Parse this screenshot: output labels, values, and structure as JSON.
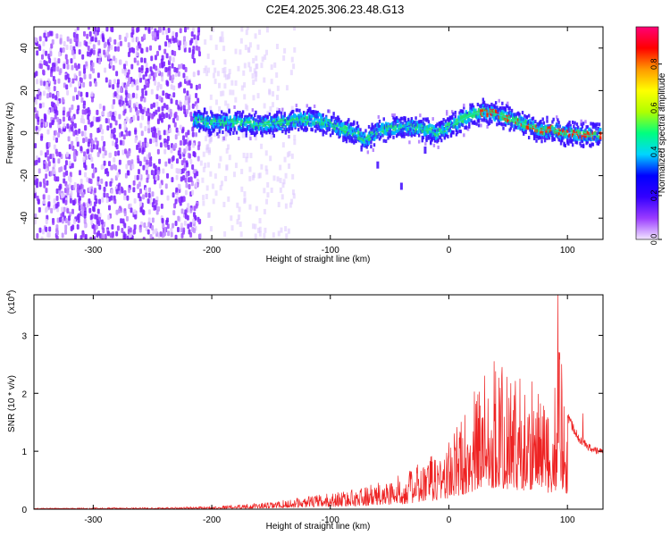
{
  "title": "C2E4.2025.306.23.48.G13",
  "chart_data": [
    {
      "type": "heatmap",
      "name": "spectrogram",
      "xlabel": "Height of straight line (km)",
      "ylabel": "Frequency (Hz)",
      "xlim": [
        -350,
        130
      ],
      "ylim": [
        -50,
        50
      ],
      "xticks": [
        -300,
        -200,
        -100,
        0,
        100
      ],
      "xtick_labels": [
        "-300",
        "-200",
        "-100",
        "0",
        "100"
      ],
      "yticks": [
        -40,
        -20,
        0,
        20,
        40
      ],
      "ytick_labels": [
        "-40",
        "-20",
        "0",
        "20",
        "40"
      ],
      "colorbar": {
        "label": "Normalized spectral amplitude",
        "range": [
          0,
          0.97
        ],
        "ticks": [
          0,
          0.2,
          0.4,
          0.6,
          0.8
        ],
        "tick_labels": [
          "0.0",
          "0.2",
          "0.4",
          "0.6",
          "0.8"
        ],
        "colors": [
          "#f2e6ff",
          "#9a3bff",
          "#3300ff",
          "#0000ff",
          "#00d5ff",
          "#00ff7f",
          "#b0ff00",
          "#ffff00",
          "#ff9900",
          "#ff0000",
          "#ff0077"
        ]
      },
      "trace": {
        "x": [
          -215,
          -200,
          -180,
          -160,
          -140,
          -125,
          -110,
          -95,
          -80,
          -70,
          -60,
          -50,
          -40,
          -20,
          -10,
          0,
          10,
          20,
          30,
          40,
          50,
          60,
          70,
          80,
          88,
          95,
          105,
          115,
          125
        ],
        "y": [
          6,
          5,
          5,
          4,
          5,
          6,
          6,
          3,
          0,
          -3,
          1,
          2,
          3,
          2,
          0,
          3,
          6,
          9,
          10,
          9,
          7,
          5,
          3,
          1,
          2,
          0,
          0,
          -1,
          -1
        ]
      }
    },
    {
      "type": "line",
      "name": "snr",
      "xlabel": "Height of straight line (km)",
      "ylabel": "SNR (10 * v/v)",
      "y_multiplier": "(x10^4)",
      "xlim": [
        -350,
        130
      ],
      "ylim": [
        0,
        3.7
      ],
      "xticks": [
        -300,
        -200,
        -100,
        0,
        100
      ],
      "xtick_labels": [
        "-300",
        "-200",
        "-100",
        "0",
        "100"
      ],
      "yticks": [
        0,
        1,
        2,
        3
      ],
      "ytick_labels": [
        "0",
        "1",
        "2",
        "3"
      ],
      "color": "#ee2222",
      "envelope": {
        "x": [
          -350,
          -250,
          -200,
          -150,
          -120,
          -100,
          -80,
          -60,
          -40,
          -20,
          0,
          10,
          20,
          30,
          40,
          50,
          60,
          70,
          80,
          85,
          90,
          93,
          95,
          100,
          110,
          120,
          130
        ],
        "y": [
          0.02,
          0.03,
          0.05,
          0.12,
          0.22,
          0.28,
          0.35,
          0.45,
          0.6,
          0.85,
          1.2,
          1.6,
          2.0,
          2.3,
          2.5,
          2.3,
          2.2,
          2.1,
          1.9,
          1.6,
          2.2,
          3.2,
          2.4,
          1.7,
          1.3,
          1.1,
          1.05
        ]
      },
      "peaks": [
        {
          "x": 92,
          "y": 3.7
        },
        {
          "x": 95,
          "y": 2.5
        },
        {
          "x": 38,
          "y": 2.55
        },
        {
          "x": 45,
          "y": 2.45
        },
        {
          "x": 30,
          "y": 2.3
        },
        {
          "x": 60,
          "y": 2.25
        },
        {
          "x": 70,
          "y": 2.2
        },
        {
          "x": 113,
          "y": 1.65
        }
      ]
    }
  ]
}
